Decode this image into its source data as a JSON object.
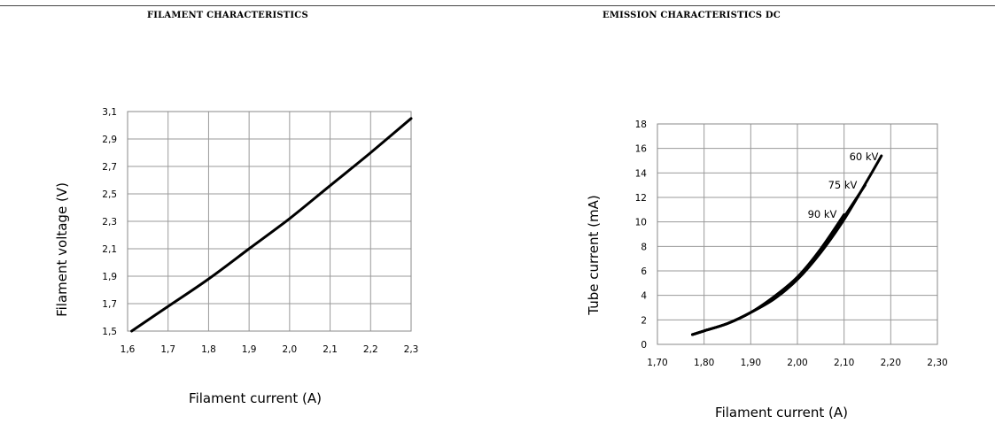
{
  "chart_data": [
    {
      "type": "line",
      "title": "FILAMENT CHARACTERISTICS",
      "xlabel": "Filament current (A)",
      "ylabel": "Filament voltage (V)",
      "xlim": [
        1.6,
        2.3
      ],
      "ylim": [
        1.5,
        3.1
      ],
      "x_ticks": [
        "1,6",
        "1,7",
        "1,8",
        "1,9",
        "2,0",
        "2,1",
        "2,2",
        "2,3"
      ],
      "y_ticks": [
        "1,5",
        "1,7",
        "1,9",
        "2,1",
        "2,3",
        "2,5",
        "2,7",
        "2,9",
        "3,1"
      ],
      "grid": true,
      "series": [
        {
          "x": [
            1.61,
            1.7,
            1.8,
            1.9,
            2.0,
            2.1,
            2.2,
            2.3
          ],
          "y": [
            1.5,
            1.68,
            1.88,
            2.1,
            2.32,
            2.56,
            2.8,
            3.05
          ]
        }
      ]
    },
    {
      "type": "line",
      "title": "EMISSION CHARACTERISTICS DC",
      "xlabel": "Filament current (A)",
      "ylabel": "Tube current (mA)",
      "xlim": [
        1.7,
        2.3
      ],
      "ylim": [
        0,
        18
      ],
      "x_ticks": [
        "1,70",
        "1,80",
        "1,90",
        "2,00",
        "2,10",
        "2,20",
        "2,30"
      ],
      "y_ticks": [
        "0",
        "2",
        "4",
        "6",
        "8",
        "10",
        "12",
        "14",
        "16",
        "18"
      ],
      "grid": true,
      "series": [
        {
          "name": "60 kV",
          "x": [
            1.775,
            1.8,
            1.85,
            1.9,
            1.95,
            2.0,
            2.05,
            2.1,
            2.15,
            2.18
          ],
          "y": [
            0.8,
            1.1,
            1.7,
            2.6,
            3.7,
            5.3,
            7.5,
            10.2,
            13.4,
            15.4
          ]
        },
        {
          "name": "75 kV",
          "x": [
            1.775,
            1.8,
            1.85,
            1.9,
            1.95,
            2.0,
            2.05,
            2.1,
            2.145
          ],
          "y": [
            0.8,
            1.1,
            1.7,
            2.6,
            3.8,
            5.4,
            7.6,
            10.4,
            13.0
          ]
        },
        {
          "name": "90 kV",
          "x": [
            1.775,
            1.8,
            1.85,
            1.9,
            1.95,
            2.0,
            2.05,
            2.1
          ],
          "y": [
            0.8,
            1.1,
            1.7,
            2.6,
            3.9,
            5.5,
            7.8,
            10.6
          ]
        }
      ]
    }
  ]
}
